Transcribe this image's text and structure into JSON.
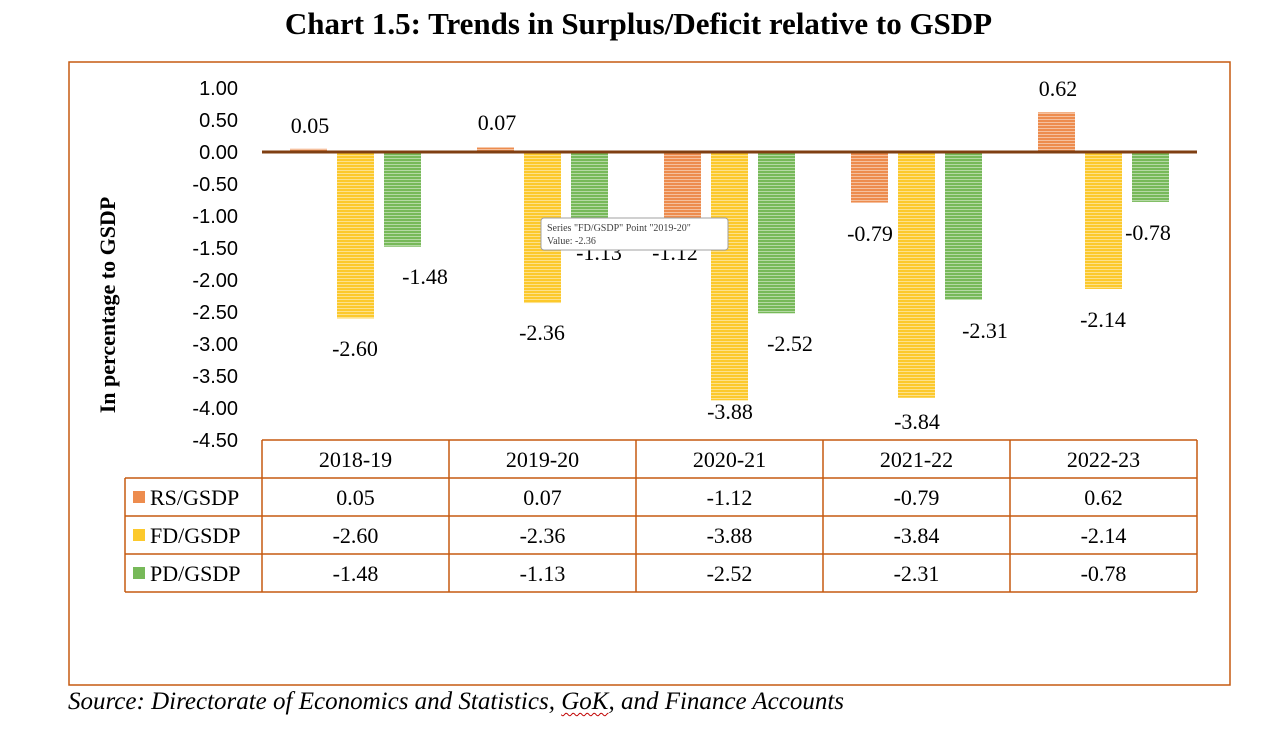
{
  "title": "Chart 1.5: Trends in Surplus/Deficit relative to GSDP",
  "source": {
    "prefix": "Source: Directorate of Economics and Statistics, ",
    "gok": "GoK",
    "suffix": ", and Finance Accounts"
  },
  "tooltip": {
    "line1": "Series \"FD/GSDP\" Point \"2019-20\"",
    "line2": "Value: -2.36"
  },
  "colors": {
    "rs": "#ed8c4e",
    "fd": "#fcc92c",
    "pd": "#77b959",
    "frame": "#c55a11",
    "zero_line": "#7f3f12"
  },
  "chart_data": {
    "type": "bar",
    "ylabel": "In percentage to GSDP",
    "ylim": [
      -4.5,
      1.0
    ],
    "ytick_step": 0.5,
    "yticks": [
      "1.00",
      "0.50",
      "0.00",
      "-0.50",
      "-1.00",
      "-1.50",
      "-2.00",
      "-2.50",
      "-3.00",
      "-3.50",
      "-4.00",
      "-4.50"
    ],
    "categories": [
      "2018-19",
      "2019-20",
      "2020-21",
      "2021-22",
      "2022-23"
    ],
    "series": [
      {
        "name": "RS/GSDP",
        "values": [
          0.05,
          0.07,
          -1.12,
          -0.79,
          0.62
        ],
        "labels": [
          "0.05",
          "0.07",
          "-1.12",
          "-0.79",
          "0.62"
        ]
      },
      {
        "name": "FD/GSDP",
        "values": [
          -2.6,
          -2.36,
          -3.88,
          -3.84,
          -2.14
        ],
        "labels": [
          "-2.60",
          "-2.36",
          "-3.88",
          "-3.84",
          "-2.14"
        ]
      },
      {
        "name": "PD/GSDP",
        "values": [
          -1.48,
          -1.13,
          -2.52,
          -2.31,
          -0.78
        ],
        "labels": [
          "-1.48",
          "-1.13",
          "-2.52",
          "-2.31",
          "-0.78"
        ]
      }
    ],
    "legend": "data-table"
  }
}
